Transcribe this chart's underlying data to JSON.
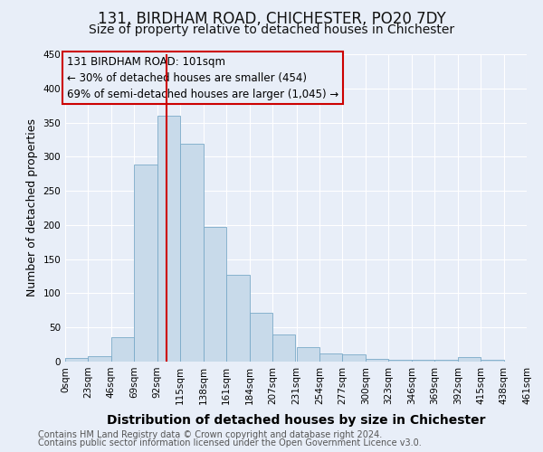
{
  "title": "131, BIRDHAM ROAD, CHICHESTER, PO20 7DY",
  "subtitle": "Size of property relative to detached houses in Chichester",
  "xlabel": "Distribution of detached houses by size in Chichester",
  "ylabel": "Number of detached properties",
  "bar_color": "#c8daea",
  "bar_edge_color": "#7aaac8",
  "background_color": "#e8eef8",
  "plot_bg_color": "#e8eef8",
  "grid_color": "#ffffff",
  "annotation_box_color": "#cc0000",
  "vline_color": "#cc0000",
  "vline_x": 101,
  "bin_edges": [
    0,
    23,
    46,
    69,
    92,
    115,
    138,
    161,
    184,
    207,
    231,
    254,
    277,
    300,
    323,
    346,
    369,
    392,
    415,
    438,
    461
  ],
  "bin_labels": [
    "0sqm",
    "23sqm",
    "46sqm",
    "69sqm",
    "92sqm",
    "115sqm",
    "138sqm",
    "161sqm",
    "184sqm",
    "207sqm",
    "231sqm",
    "254sqm",
    "277sqm",
    "300sqm",
    "323sqm",
    "346sqm",
    "369sqm",
    "392sqm",
    "415sqm",
    "438sqm",
    "461sqm"
  ],
  "bar_heights": [
    5,
    8,
    36,
    289,
    360,
    319,
    197,
    127,
    71,
    40,
    21,
    12,
    10,
    4,
    3,
    3,
    2,
    6,
    3,
    0
  ],
  "ylim": [
    0,
    450
  ],
  "yticks": [
    0,
    50,
    100,
    150,
    200,
    250,
    300,
    350,
    400,
    450
  ],
  "annotation_line1": "131 BIRDHAM ROAD: 101sqm",
  "annotation_line2": "← 30% of detached houses are smaller (454)",
  "annotation_line3": "69% of semi-detached houses are larger (1,045) →",
  "footer_line1": "Contains HM Land Registry data © Crown copyright and database right 2024.",
  "footer_line2": "Contains public sector information licensed under the Open Government Licence v3.0.",
  "title_fontsize": 12,
  "subtitle_fontsize": 10,
  "xlabel_fontsize": 10,
  "ylabel_fontsize": 9,
  "tick_fontsize": 7.5,
  "annotation_fontsize": 8.5,
  "footer_fontsize": 7
}
